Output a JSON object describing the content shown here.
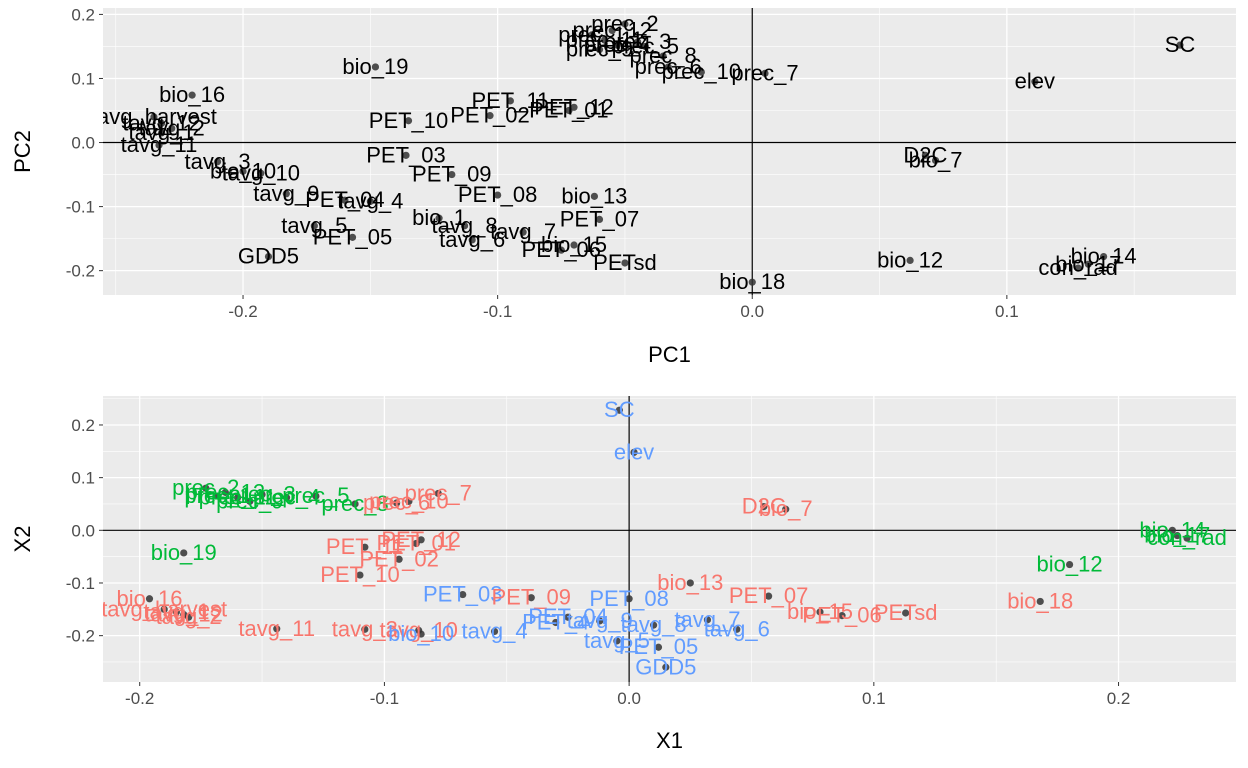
{
  "chart_data": [
    {
      "type": "scatter",
      "panel": "top",
      "title": "",
      "xlabel": "PC1",
      "ylabel": "PC2",
      "xlim": [
        -0.255,
        0.19
      ],
      "ylim": [
        -0.238,
        0.21
      ],
      "xticks": [
        -0.2,
        -0.1,
        0.0,
        0.1
      ],
      "xtick_labels": [
        "-0.2",
        "-0.1",
        "0.0",
        "0.1"
      ],
      "yticks": [
        -0.2,
        -0.1,
        0.0,
        0.1,
        0.2
      ],
      "ytick_labels": [
        "-0.2",
        "-0.1",
        "0.0",
        "0.1",
        "0.2"
      ],
      "grid": true,
      "reference_lines": {
        "x": 0,
        "y": 0
      },
      "label_color": "#000000",
      "points": [
        {
          "label": "prec_2",
          "x": -0.05,
          "y": 0.185
        },
        {
          "label": "prec_12",
          "x": -0.055,
          "y": 0.175
        },
        {
          "label": "prec_1",
          "x": -0.063,
          "y": 0.168
        },
        {
          "label": "prec_11",
          "x": -0.058,
          "y": 0.16
        },
        {
          "label": "prec_3",
          "x": -0.045,
          "y": 0.157
        },
        {
          "label": "prec_4",
          "x": -0.053,
          "y": 0.152
        },
        {
          "label": "prec_5",
          "x": -0.042,
          "y": 0.15
        },
        {
          "label": "prec_9",
          "x": -0.06,
          "y": 0.145
        },
        {
          "label": "prec_8",
          "x": -0.035,
          "y": 0.135
        },
        {
          "label": "prec_6",
          "x": -0.033,
          "y": 0.118
        },
        {
          "label": "prec_10",
          "x": -0.02,
          "y": 0.11
        },
        {
          "label": "prec_7",
          "x": 0.005,
          "y": 0.108
        },
        {
          "label": "bio_19",
          "x": -0.148,
          "y": 0.118
        },
        {
          "label": "bio_16",
          "x": -0.22,
          "y": 0.074
        },
        {
          "label": "tavg_harvest",
          "x": -0.235,
          "y": 0.04
        },
        {
          "label": "tavg_12",
          "x": -0.232,
          "y": 0.03
        },
        {
          "label": "tavg_2",
          "x": -0.228,
          "y": 0.022
        },
        {
          "label": "tavg_1",
          "x": -0.232,
          "y": 0.015
        },
        {
          "label": "PET_11",
          "x": -0.095,
          "y": 0.065
        },
        {
          "label": "PET_12",
          "x": -0.07,
          "y": 0.055
        },
        {
          "label": "PET_01",
          "x": -0.072,
          "y": 0.05
        },
        {
          "label": "PET_02",
          "x": -0.103,
          "y": 0.042
        },
        {
          "label": "PET_10",
          "x": -0.135,
          "y": 0.034
        },
        {
          "label": "tavg_11",
          "x": -0.233,
          "y": -0.004
        },
        {
          "label": "PET_03",
          "x": -0.136,
          "y": -0.02
        },
        {
          "label": "tavg_3",
          "x": -0.21,
          "y": -0.03
        },
        {
          "label": "bio_10",
          "x": -0.2,
          "y": -0.045
        },
        {
          "label": "tavg_10",
          "x": -0.193,
          "y": -0.048
        },
        {
          "label": "PET_09",
          "x": -0.118,
          "y": -0.05
        },
        {
          "label": "tavg_9",
          "x": -0.183,
          "y": -0.08
        },
        {
          "label": "PET_04",
          "x": -0.16,
          "y": -0.09
        },
        {
          "label": "tavg_4",
          "x": -0.15,
          "y": -0.092
        },
        {
          "label": "PET_08",
          "x": -0.1,
          "y": -0.082
        },
        {
          "label": "bio_13",
          "x": -0.062,
          "y": -0.084
        },
        {
          "label": "bio_1",
          "x": -0.123,
          "y": -0.118
        },
        {
          "label": "tavg_8",
          "x": -0.113,
          "y": -0.13
        },
        {
          "label": "tavg_5",
          "x": -0.172,
          "y": -0.13
        },
        {
          "label": "tavg_7",
          "x": -0.09,
          "y": -0.14
        },
        {
          "label": "PET_07",
          "x": -0.06,
          "y": -0.12
        },
        {
          "label": "PET_05",
          "x": -0.157,
          "y": -0.148
        },
        {
          "label": "tavg_6",
          "x": -0.11,
          "y": -0.152
        },
        {
          "label": "bio_15",
          "x": -0.07,
          "y": -0.16
        },
        {
          "label": "PET_06",
          "x": -0.075,
          "y": -0.168
        },
        {
          "label": "PETsd",
          "x": -0.05,
          "y": -0.188
        },
        {
          "label": "GDD5",
          "x": -0.19,
          "y": -0.178
        },
        {
          "label": "bio_18",
          "x": 0.0,
          "y": -0.218
        },
        {
          "label": "bio_12",
          "x": 0.062,
          "y": -0.184
        },
        {
          "label": "SC",
          "x": 0.168,
          "y": 0.152
        },
        {
          "label": "elev",
          "x": 0.111,
          "y": 0.095
        },
        {
          "label": "D2C",
          "x": 0.068,
          "y": -0.02
        },
        {
          "label": "bio_7",
          "x": 0.072,
          "y": -0.028
        },
        {
          "label": "bio_14",
          "x": 0.138,
          "y": -0.178
        },
        {
          "label": "bio_17",
          "x": 0.132,
          "y": -0.19
        },
        {
          "label": "con_rad",
          "x": 0.128,
          "y": -0.196
        }
      ]
    },
    {
      "type": "scatter",
      "panel": "bottom",
      "title": "",
      "xlabel": "X1",
      "ylabel": "X2",
      "xlim": [
        -0.215,
        0.248
      ],
      "ylim": [
        -0.288,
        0.255
      ],
      "xticks": [
        -0.2,
        -0.1,
        0.0,
        0.1,
        0.2
      ],
      "xtick_labels": [
        "-0.2",
        "-0.1",
        "0.0",
        "0.1",
        "0.2"
      ],
      "yticks": [
        -0.2,
        -0.1,
        0.0,
        0.1,
        0.2
      ],
      "ytick_labels": [
        "-0.2",
        "-0.1",
        "0.0",
        "0.1",
        "0.2"
      ],
      "grid": true,
      "reference_lines": {
        "x": 0,
        "y": 0
      },
      "cluster_colors": {
        "1": "#f8766d",
        "2": "#00ba38",
        "3": "#619cff"
      },
      "points": [
        {
          "label": "SC",
          "x": -0.004,
          "y": 0.228,
          "cluster": 3
        },
        {
          "label": "elev",
          "x": 0.002,
          "y": 0.148,
          "cluster": 3
        },
        {
          "label": "prec_2",
          "x": -0.173,
          "y": 0.08,
          "cluster": 2
        },
        {
          "label": "prec_12",
          "x": -0.165,
          "y": 0.072,
          "cluster": 2
        },
        {
          "label": "prec_1",
          "x": -0.168,
          "y": 0.065,
          "cluster": 2
        },
        {
          "label": "prec_11",
          "x": -0.16,
          "y": 0.062,
          "cluster": 2
        },
        {
          "label": "prec_3",
          "x": -0.15,
          "y": 0.068,
          "cluster": 2
        },
        {
          "label": "prec_4",
          "x": -0.14,
          "y": 0.062,
          "cluster": 2
        },
        {
          "label": "prec_5",
          "x": -0.128,
          "y": 0.065,
          "cluster": 2
        },
        {
          "label": "prec_9",
          "x": -0.155,
          "y": 0.055,
          "cluster": 2
        },
        {
          "label": "prec_8",
          "x": -0.112,
          "y": 0.05,
          "cluster": 2
        },
        {
          "label": "prec_6",
          "x": -0.095,
          "y": 0.052,
          "cluster": 1
        },
        {
          "label": "prec_10",
          "x": -0.09,
          "y": 0.055,
          "cluster": 1
        },
        {
          "label": "prec_7",
          "x": -0.078,
          "y": 0.07,
          "cluster": 1
        },
        {
          "label": "bio_19",
          "x": -0.182,
          "y": -0.043,
          "cluster": 2
        },
        {
          "label": "D2C",
          "x": 0.055,
          "y": 0.045,
          "cluster": 1
        },
        {
          "label": "bio_7",
          "x": 0.064,
          "y": 0.04,
          "cluster": 1
        },
        {
          "label": "PET_11",
          "x": -0.108,
          "y": -0.032,
          "cluster": 1
        },
        {
          "label": "PET_12",
          "x": -0.085,
          "y": -0.018,
          "cluster": 1
        },
        {
          "label": "PET_01",
          "x": -0.087,
          "y": -0.025,
          "cluster": 1
        },
        {
          "label": "PET_02",
          "x": -0.094,
          "y": -0.055,
          "cluster": 1
        },
        {
          "label": "PET_10",
          "x": -0.11,
          "y": -0.085,
          "cluster": 1
        },
        {
          "label": "bio_16",
          "x": -0.196,
          "y": -0.13,
          "cluster": 1
        },
        {
          "label": "tavg_harvest",
          "x": -0.19,
          "y": -0.15,
          "cluster": 1
        },
        {
          "label": "tavg_1",
          "x": -0.185,
          "y": -0.155,
          "cluster": 1
        },
        {
          "label": "tavg_12",
          "x": -0.182,
          "y": -0.16,
          "cluster": 1
        },
        {
          "label": "tavg_2",
          "x": -0.18,
          "y": -0.165,
          "cluster": 1
        },
        {
          "label": "tavg_11",
          "x": -0.144,
          "y": -0.187,
          "cluster": 1
        },
        {
          "label": "tavg_3",
          "x": -0.108,
          "y": -0.188,
          "cluster": 1
        },
        {
          "label": "tavg_10",
          "x": -0.086,
          "y": -0.19,
          "cluster": 1
        },
        {
          "label": "bio_10",
          "x": -0.085,
          "y": -0.197,
          "cluster": 3
        },
        {
          "label": "PET_03",
          "x": -0.068,
          "y": -0.122,
          "cluster": 3
        },
        {
          "label": "PET_09",
          "x": -0.04,
          "y": -0.128,
          "cluster": 1
        },
        {
          "label": "PET_08",
          "x": 0.0,
          "y": -0.13,
          "cluster": 3
        },
        {
          "label": "PET_04",
          "x": -0.025,
          "y": -0.165,
          "cluster": 3
        },
        {
          "label": "PET_4",
          "x": -0.03,
          "y": -0.175,
          "cluster": 3
        },
        {
          "label": "tavg_4",
          "x": -0.055,
          "y": -0.192,
          "cluster": 3
        },
        {
          "label": "tavg_9",
          "x": -0.012,
          "y": -0.172,
          "cluster": 3
        },
        {
          "label": "tavg_8",
          "x": 0.01,
          "y": -0.18,
          "cluster": 3
        },
        {
          "label": "tavg_5",
          "x": -0.005,
          "y": -0.21,
          "cluster": 3
        },
        {
          "label": "PET_05",
          "x": 0.012,
          "y": -0.222,
          "cluster": 3
        },
        {
          "label": "GDD5",
          "x": 0.015,
          "y": -0.26,
          "cluster": 3
        },
        {
          "label": "tavg_7",
          "x": 0.032,
          "y": -0.17,
          "cluster": 3
        },
        {
          "label": "tavg_6",
          "x": 0.044,
          "y": -0.188,
          "cluster": 3
        },
        {
          "label": "bio_13",
          "x": 0.025,
          "y": -0.1,
          "cluster": 1
        },
        {
          "label": "PET_07",
          "x": 0.057,
          "y": -0.125,
          "cluster": 1
        },
        {
          "label": "bio_15",
          "x": 0.078,
          "y": -0.155,
          "cluster": 1
        },
        {
          "label": "PET_06",
          "x": 0.087,
          "y": -0.162,
          "cluster": 1
        },
        {
          "label": "PETsd",
          "x": 0.113,
          "y": -0.157,
          "cluster": 1
        },
        {
          "label": "bio_18",
          "x": 0.168,
          "y": -0.135,
          "cluster": 1
        },
        {
          "label": "bio_12",
          "x": 0.18,
          "y": -0.065,
          "cluster": 2
        },
        {
          "label": "bio_14",
          "x": 0.222,
          "y": 0.0,
          "cluster": 2
        },
        {
          "label": "bio_17",
          "x": 0.224,
          "y": -0.01,
          "cluster": 2
        },
        {
          "label": "con_rad",
          "x": 0.228,
          "y": -0.015,
          "cluster": 2
        }
      ]
    }
  ]
}
